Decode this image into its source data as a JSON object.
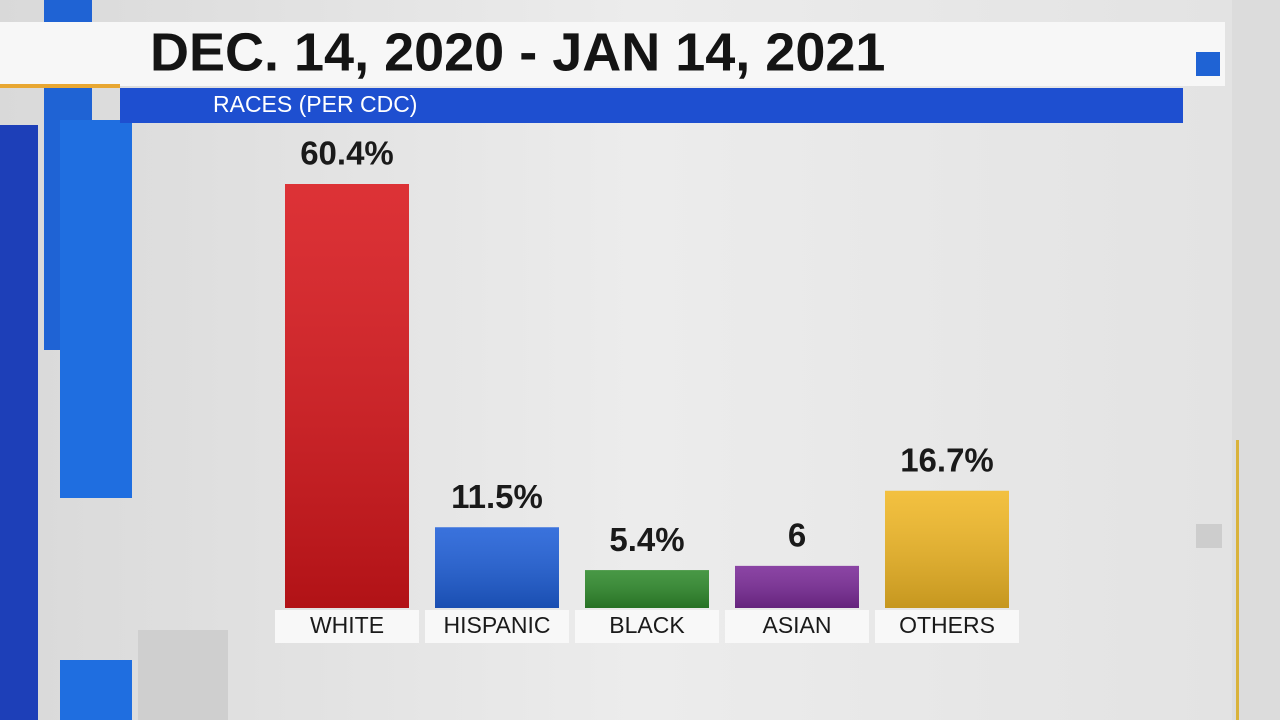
{
  "chart_data": {
    "type": "bar",
    "title": "DEC. 14, 2020 - JAN 14, 2021",
    "subtitle": "RACES (PER CDC)",
    "categories": [
      "WHITE",
      "HISPANIC",
      "BLACK",
      "ASIAN",
      "OTHERS"
    ],
    "values": [
      60.4,
      11.5,
      5.4,
      6,
      16.7
    ],
    "value_labels": [
      "60.4%",
      "11.5%",
      "5.4%",
      "6",
      "16.7%"
    ],
    "colors": [
      "#d8161b",
      "#1f5fd8",
      "#2f8a2c",
      "#7b2b98",
      "#f1b826"
    ]
  }
}
